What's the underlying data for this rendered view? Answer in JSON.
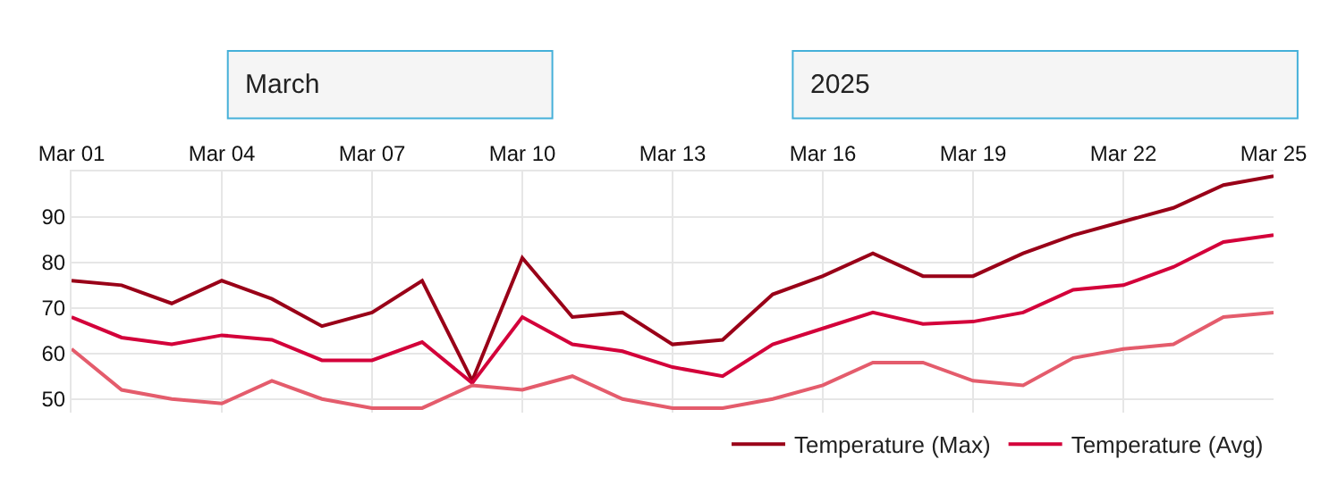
{
  "chart_data": {
    "type": "line",
    "annotations": [
      "March",
      "2025"
    ],
    "x": [
      "2025-03-01",
      "2025-03-02",
      "2025-03-03",
      "2025-03-04",
      "2025-03-05",
      "2025-03-06",
      "2025-03-07",
      "2025-03-08",
      "2025-03-09",
      "2025-03-10",
      "2025-03-11",
      "2025-03-12",
      "2025-03-13",
      "2025-03-14",
      "2025-03-15",
      "2025-03-16",
      "2025-03-17",
      "2025-03-18",
      "2025-03-19",
      "2025-03-20",
      "2025-03-21",
      "2025-03-22",
      "2025-03-23",
      "2025-03-24",
      "2025-03-25"
    ],
    "series": [
      {
        "name": "Temperature (Max)",
        "color": "#990018",
        "values": [
          76,
          75,
          71,
          76,
          72,
          66,
          69,
          76,
          54,
          81,
          68,
          69,
          62,
          63,
          73,
          77,
          82,
          77,
          77,
          82,
          86,
          89,
          92,
          97,
          99
        ]
      },
      {
        "name": "Temperature (Avg)",
        "color": "#d3003a",
        "values": [
          68,
          63.5,
          62,
          64,
          63,
          58.5,
          58.5,
          62.5,
          53.5,
          68,
          62,
          60.5,
          57,
          55,
          62,
          65.5,
          69,
          66.5,
          67,
          69,
          74,
          75,
          79,
          84.5,
          86
        ]
      },
      {
        "color": "#e45c6c",
        "values": [
          61,
          52,
          50,
          49,
          54,
          50,
          48,
          48,
          53,
          52,
          55,
          50,
          48,
          48,
          50,
          53,
          58,
          58,
          54,
          53,
          59,
          61,
          62,
          68,
          69
        ]
      }
    ],
    "xlim": [
      "2025-03-01",
      "2025-03-25"
    ],
    "xticks": [
      {
        "value": "2025-03-01",
        "label": "Mar 01"
      },
      {
        "value": "2025-03-04",
        "label": "Mar 04"
      },
      {
        "value": "2025-03-07",
        "label": "Mar 07"
      },
      {
        "value": "2025-03-10",
        "label": "Mar 10"
      },
      {
        "value": "2025-03-13",
        "label": "Mar 13"
      },
      {
        "value": "2025-03-16",
        "label": "Mar 16"
      },
      {
        "value": "2025-03-19",
        "label": "Mar 19"
      },
      {
        "value": "2025-03-22",
        "label": "Mar 22"
      },
      {
        "value": "2025-03-25",
        "label": "Mar 25"
      }
    ],
    "ylim": [
      47,
      100
    ],
    "yticks": [
      50,
      60,
      70,
      80,
      90
    ],
    "grid": true,
    "legend": "bottom right",
    "marker": "none",
    "line_style": "solid"
  }
}
